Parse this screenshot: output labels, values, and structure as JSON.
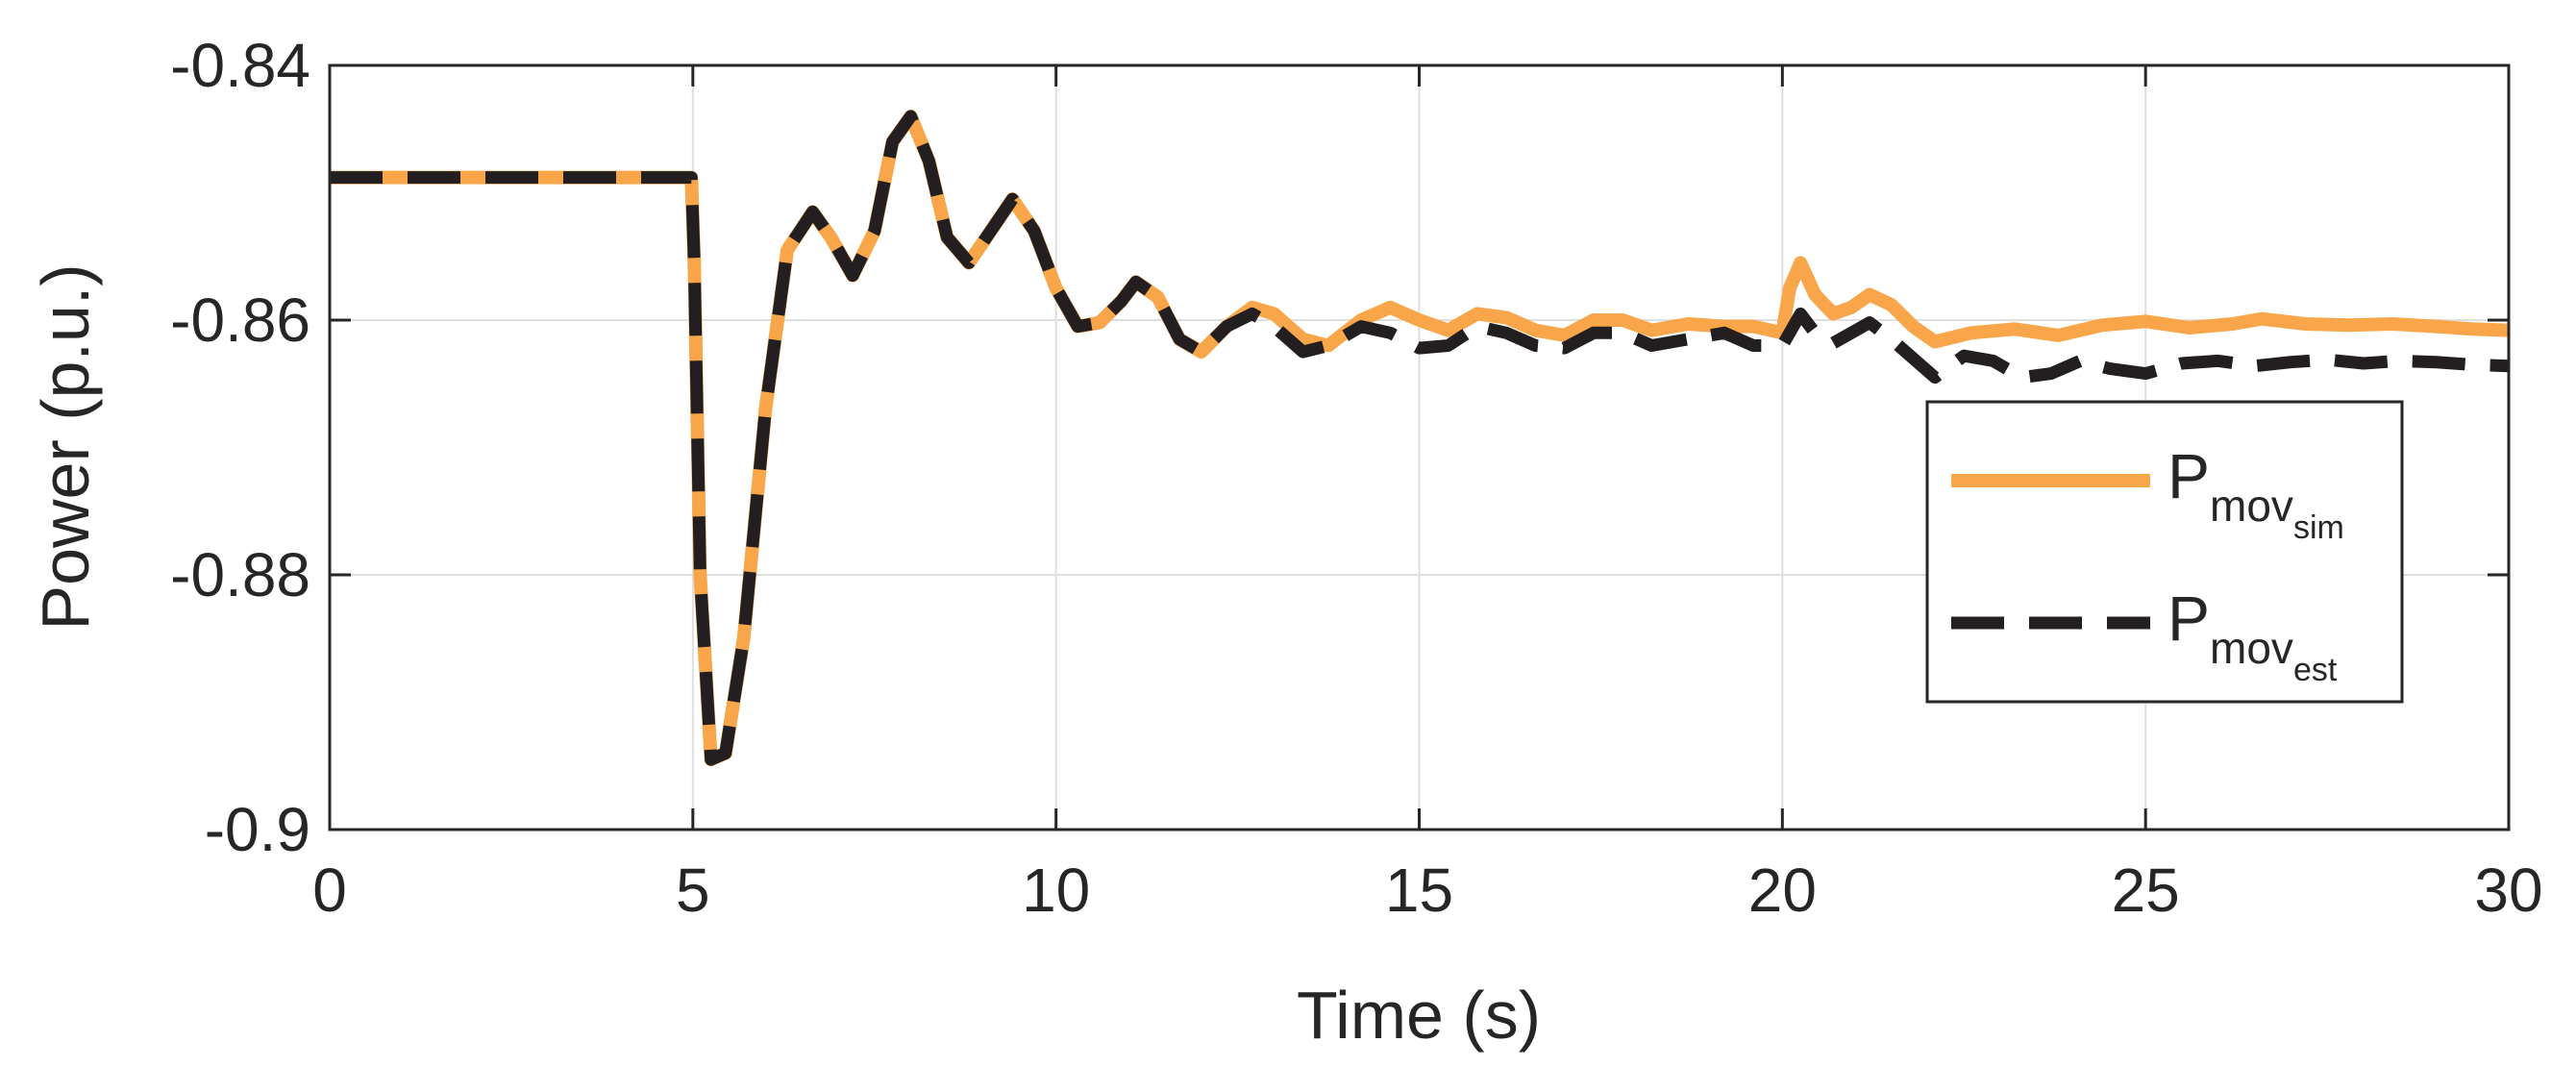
{
  "chart_data": {
    "type": "line",
    "title": "",
    "xlabel": "Time (s)",
    "ylabel": "Power (p.u.)",
    "xlim": [
      0,
      30
    ],
    "ylim": [
      -0.9,
      -0.84
    ],
    "x_ticks": [
      0,
      5,
      10,
      15,
      20,
      25,
      30
    ],
    "y_ticks": [
      -0.9,
      -0.88,
      -0.86,
      -0.84
    ],
    "x_tick_labels": [
      "0",
      "5",
      "10",
      "15",
      "20",
      "25",
      "30"
    ],
    "y_tick_labels": [
      "-0.9",
      "-0.88",
      "-0.86",
      "-0.84"
    ],
    "grid": true,
    "legend_position": "right",
    "series": [
      {
        "name": "P_mov_sim",
        "label": {
          "base": "P",
          "sub": "mov",
          "subsub": "sim"
        },
        "color": "#f9a64a",
        "style": "solid",
        "x": [
          0,
          4.98,
          5.02,
          5.1,
          5.25,
          5.45,
          5.7,
          6.0,
          6.3,
          6.65,
          6.9,
          7.2,
          7.5,
          7.75,
          8.0,
          8.25,
          8.5,
          8.8,
          9.1,
          9.4,
          9.7,
          10.0,
          10.3,
          10.6,
          10.9,
          11.1,
          11.4,
          11.7,
          12.0,
          12.35,
          12.7,
          13.0,
          13.4,
          13.75,
          14.2,
          14.6,
          15.0,
          15.4,
          15.8,
          16.2,
          16.6,
          17.0,
          17.4,
          17.8,
          18.2,
          18.7,
          19.2,
          19.6,
          20.0,
          20.1,
          20.25,
          20.45,
          20.7,
          20.95,
          21.2,
          21.5,
          21.8,
          22.1,
          22.6,
          23.2,
          23.8,
          24.4,
          25.0,
          25.6,
          26.2,
          26.6,
          27.2,
          27.8,
          28.4,
          29.0,
          29.5,
          30.0
        ],
        "y": [
          -0.8488,
          -0.8488,
          -0.8555,
          -0.88,
          -0.8945,
          -0.894,
          -0.885,
          -0.867,
          -0.8545,
          -0.8515,
          -0.8535,
          -0.8565,
          -0.853,
          -0.846,
          -0.844,
          -0.8475,
          -0.8535,
          -0.8555,
          -0.853,
          -0.8505,
          -0.853,
          -0.8575,
          -0.8605,
          -0.8602,
          -0.8585,
          -0.857,
          -0.8582,
          -0.8615,
          -0.8625,
          -0.8605,
          -0.859,
          -0.8595,
          -0.8615,
          -0.862,
          -0.86,
          -0.859,
          -0.86,
          -0.8608,
          -0.8595,
          -0.8598,
          -0.8608,
          -0.8612,
          -0.86,
          -0.86,
          -0.8608,
          -0.8603,
          -0.8605,
          -0.8605,
          -0.861,
          -0.8575,
          -0.8555,
          -0.858,
          -0.8595,
          -0.859,
          -0.858,
          -0.8588,
          -0.8605,
          -0.8617,
          -0.861,
          -0.8607,
          -0.8612,
          -0.8604,
          -0.8601,
          -0.8606,
          -0.8603,
          -0.8599,
          -0.8603,
          -0.8604,
          -0.8603,
          -0.8605,
          -0.8607,
          -0.8608
        ]
      },
      {
        "name": "P_mov_est",
        "label": {
          "base": "P",
          "sub": "mov",
          "subsub": "est"
        },
        "color": "#231f20",
        "style": "dashed",
        "x": [
          0,
          4.98,
          5.02,
          5.1,
          5.25,
          5.45,
          5.7,
          6.0,
          6.3,
          6.65,
          6.9,
          7.2,
          7.5,
          7.75,
          8.0,
          8.25,
          8.5,
          8.8,
          9.1,
          9.4,
          9.7,
          10.0,
          10.3,
          10.6,
          10.9,
          11.1,
          11.4,
          11.7,
          12.0,
          12.35,
          12.7,
          13.0,
          13.4,
          13.75,
          14.2,
          14.6,
          15.0,
          15.4,
          15.8,
          16.2,
          16.6,
          17.0,
          17.4,
          17.8,
          18.2,
          18.7,
          19.2,
          19.6,
          20.0,
          20.1,
          20.25,
          20.45,
          20.7,
          20.95,
          21.2,
          21.5,
          21.8,
          22.1,
          22.5,
          22.9,
          23.3,
          23.7,
          24.1,
          24.5,
          25.0,
          25.5,
          26.0,
          26.5,
          27.0,
          27.5,
          28.0,
          28.5,
          29.0,
          29.5,
          30.0
        ],
        "y": [
          -0.8488,
          -0.8488,
          -0.8555,
          -0.88,
          -0.8945,
          -0.894,
          -0.885,
          -0.867,
          -0.8545,
          -0.8515,
          -0.8535,
          -0.8565,
          -0.853,
          -0.846,
          -0.844,
          -0.8475,
          -0.8535,
          -0.8555,
          -0.853,
          -0.8505,
          -0.853,
          -0.8575,
          -0.8605,
          -0.8602,
          -0.8585,
          -0.857,
          -0.8582,
          -0.8615,
          -0.8625,
          -0.8605,
          -0.8595,
          -0.8605,
          -0.8625,
          -0.862,
          -0.8605,
          -0.861,
          -0.8622,
          -0.862,
          -0.8605,
          -0.861,
          -0.862,
          -0.8622,
          -0.861,
          -0.861,
          -0.862,
          -0.8615,
          -0.861,
          -0.862,
          -0.862,
          -0.861,
          -0.8595,
          -0.861,
          -0.8618,
          -0.861,
          -0.8602,
          -0.8615,
          -0.863,
          -0.8645,
          -0.8628,
          -0.8632,
          -0.8645,
          -0.8642,
          -0.8632,
          -0.8638,
          -0.8642,
          -0.8634,
          -0.8632,
          -0.8636,
          -0.8633,
          -0.8631,
          -0.8634,
          -0.8632,
          -0.8633,
          -0.8635,
          -0.8636
        ]
      }
    ]
  }
}
